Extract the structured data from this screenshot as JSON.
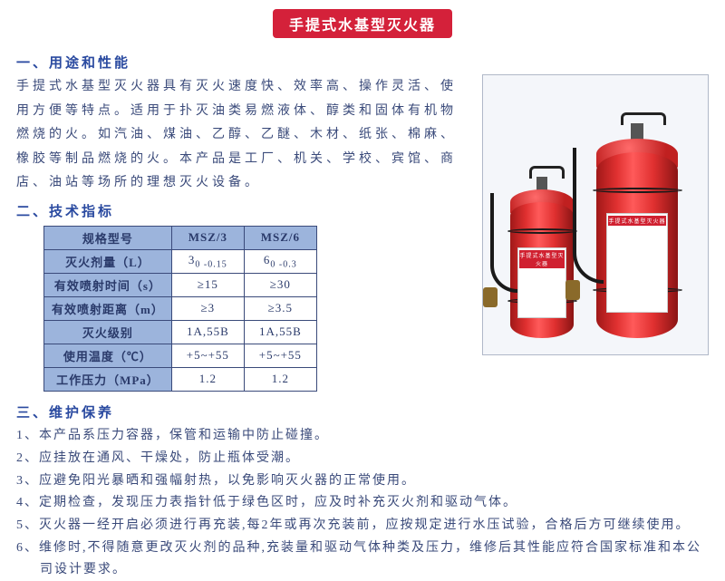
{
  "title": "手提式水基型灭火器",
  "section1": {
    "heading": "一、用途和性能",
    "text": "手提式水基型灭火器具有灭火速度快、效率高、操作灵活、使用方便等特点。适用于扑灭油类易燃液体、醇类和固体有机物燃烧的火。如汽油、煤油、乙醇、乙醚、木材、纸张、棉麻、橡胶等制品燃烧的火。本产品是工厂、机关、学校、宾馆、商店、油站等场所的理想灭火设备。"
  },
  "section2": {
    "heading": "二、技术指标",
    "table": {
      "header": [
        "规格型号",
        "MSZ/3",
        "MSZ/6"
      ],
      "rows": [
        {
          "label": "灭火剂量（L）",
          "c1": "3",
          "c1_tol": "0 -0.15",
          "c2": "6",
          "c2_tol": "0 -0.3"
        },
        {
          "label": "有效喷射时间（s）",
          "c1": "≥15",
          "c2": "≥30"
        },
        {
          "label": "有效喷射距离（m）",
          "c1": "≥3",
          "c2": "≥3.5"
        },
        {
          "label": "灭火级别",
          "c1": "1A,55B",
          "c2": "1A,55B"
        },
        {
          "label": "使用温度（℃）",
          "c1": "+5~+55",
          "c2": "+5~+55"
        },
        {
          "label": "工作压力（MPa）",
          "c1": "1.2",
          "c2": "1.2"
        }
      ]
    }
  },
  "section3": {
    "heading": "三、维护保养",
    "items": [
      "1、本产品系压力容器，保管和运输中防止碰撞。",
      "2、应挂放在通风、干燥处，防止瓶体受潮。",
      "3、应避免阳光暴晒和强幅射热，以免影响灭火器的正常使用。",
      "4、定期检查，发现压力表指针低于绿色区时，应及时补充灭火剂和驱动气体。",
      "5、灭火器一经开启必须进行再充装,每2年或再次充装前，应按规定进行水压试验，合格后方可继续使用。",
      "6、维修时,不得随意更改灭火剂的品种,充装量和驱动气体种类及压力，维修后其性能应符合国家标准和本公司设计要求。"
    ]
  },
  "image_label": "手提式水基型灭火器",
  "colors": {
    "title_bg": "#d4213a",
    "heading": "#2a4aa0",
    "body": "#3a4a7a",
    "table_header_bg": "#9cb4dc",
    "extinguisher": "#e03030"
  }
}
